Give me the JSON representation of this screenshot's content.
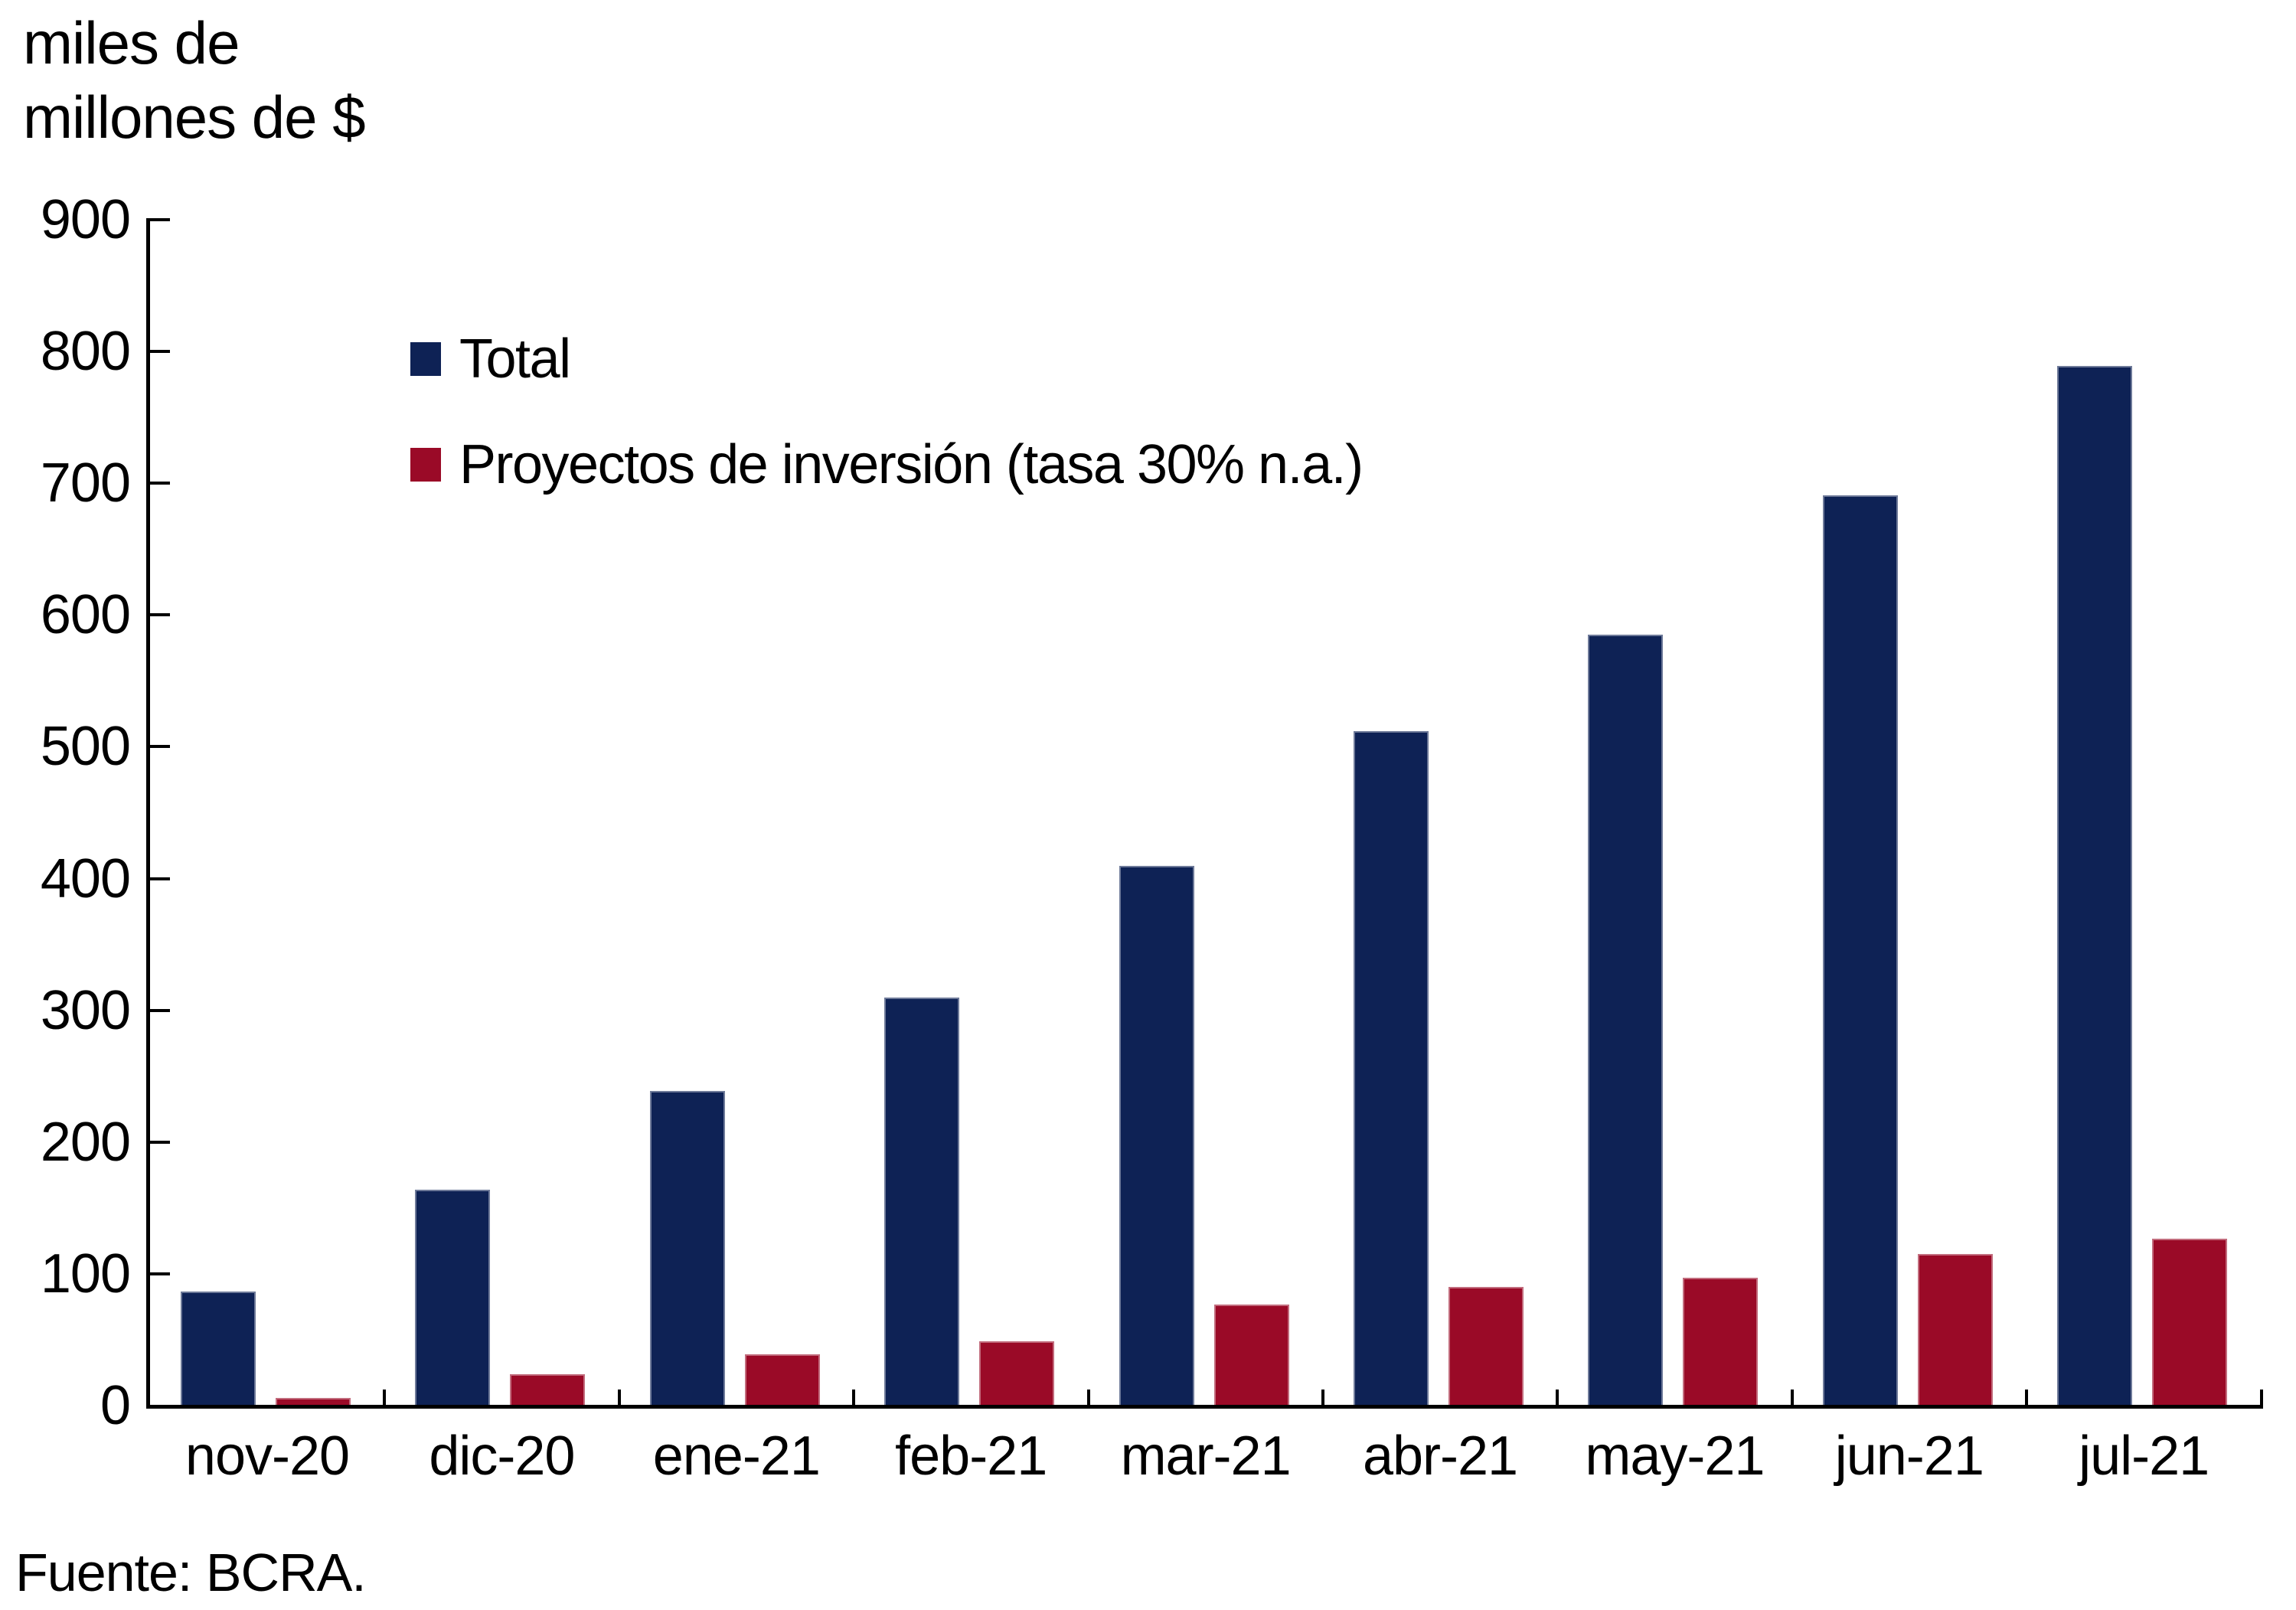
{
  "title": {
    "line1": "miles de",
    "line2": "millones de $"
  },
  "source": "Fuente: BCRA.",
  "legend": {
    "items": [
      {
        "label": "Total",
        "color": "#0e2255"
      },
      {
        "label": "Proyectos de inversión (tasa 30% n.a.)",
        "color": "#9a0a27"
      }
    ]
  },
  "chart_data": {
    "type": "bar",
    "title": "",
    "ylabel": "miles de millones de $",
    "xlabel": "",
    "categories": [
      "nov-20",
      "dic-20",
      "ene-21",
      "feb-21",
      "mar-21",
      "abr-21",
      "may-21",
      "jun-21",
      "jul-21"
    ],
    "series": [
      {
        "name": "Total",
        "color": "#0e2255",
        "values": [
          88,
          165,
          240,
          311,
          411,
          513,
          586,
          692,
          790
        ]
      },
      {
        "name": "Proyectos de inversión (tasa 30% n.a.)",
        "color": "#9a0a27",
        "values": [
          7,
          25,
          40,
          50,
          78,
          91,
          98,
          116,
          128
        ]
      }
    ],
    "ylim": [
      0,
      900
    ],
    "ytick_step": 100,
    "yticks": [
      0,
      100,
      200,
      300,
      400,
      500,
      600,
      700,
      800,
      900
    ],
    "grid": false,
    "tick_direction": "in",
    "legend_position": "top-left-inside",
    "axis_color": "#000000"
  }
}
